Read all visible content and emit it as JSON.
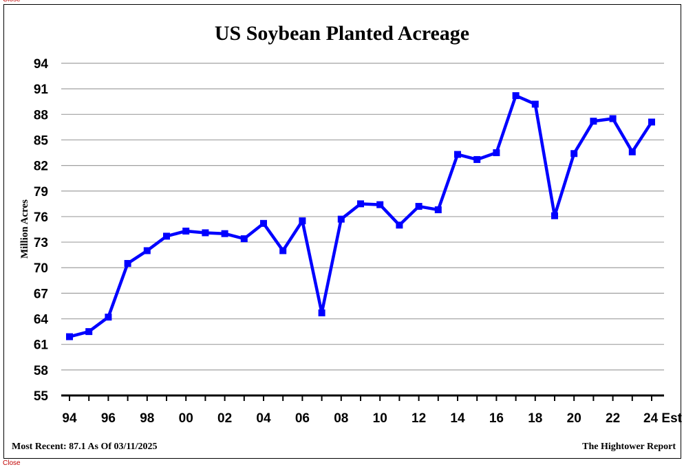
{
  "close_label": "Close",
  "chart_data": {
    "type": "line",
    "title": "US Soybean Planted Acreage",
    "xlabel": "",
    "ylabel": "Million Acres",
    "ylim": [
      55,
      94
    ],
    "yticks": [
      55,
      58,
      61,
      64,
      67,
      70,
      73,
      76,
      79,
      82,
      85,
      88,
      91,
      94
    ],
    "xtick_labels": [
      "94",
      "96",
      "98",
      "00",
      "02",
      "04",
      "06",
      "08",
      "10",
      "12",
      "14",
      "16",
      "18",
      "20",
      "22",
      "24 Est"
    ],
    "grid": true,
    "line_color": "#0000ff",
    "series": [
      {
        "x": [
          "1994",
          "1995",
          "1996",
          "1997",
          "1998",
          "1999",
          "2000",
          "2001",
          "2002",
          "2003",
          "2004",
          "2005",
          "2006",
          "2007",
          "2008",
          "2009",
          "2010",
          "2011",
          "2012",
          "2013",
          "2014",
          "2015",
          "2016",
          "2017",
          "2018",
          "2019",
          "2020",
          "2021",
          "2022",
          "2023",
          "2024 Est"
        ],
        "values": [
          61.9,
          62.5,
          64.2,
          70.5,
          72.0,
          73.7,
          74.3,
          74.1,
          74.0,
          73.4,
          75.2,
          72.0,
          75.5,
          64.7,
          75.7,
          77.5,
          77.4,
          75.0,
          77.2,
          76.8,
          83.3,
          82.7,
          83.5,
          90.2,
          89.2,
          76.1,
          83.4,
          87.2,
          87.5,
          83.6,
          87.1
        ]
      }
    ]
  },
  "footer": {
    "left": "Most Recent: 87.1 As Of 03/11/2025",
    "right": "The Hightower Report"
  }
}
